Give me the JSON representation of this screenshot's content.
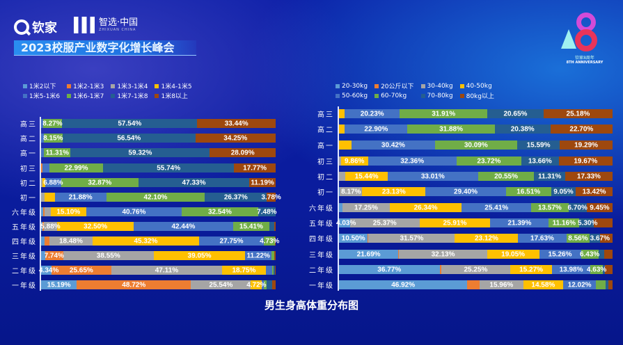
{
  "header": {
    "logo1_text": "钦家",
    "logo2_text": "智选·中国",
    "logo2_sub": "ZHIXUAN CHINA",
    "banner": "2023校服产业数字化增长峰会",
    "anniversary_cn": "钦家8周年",
    "anniversary_en": "8TH ANNIVERSARY"
  },
  "colors": [
    "#5b9bd5",
    "#ed7d31",
    "#a5a5a5",
    "#ffc000",
    "#4472c4",
    "#70ad47",
    "#255e91",
    "#9e480e"
  ],
  "chart_data": [
    {
      "type": "bar",
      "orientation": "horizontal-stacked-100",
      "title": "男生身高体重分布图",
      "legend_position": "top-left",
      "categories": [
        "高三",
        "高二",
        "高一",
        "初三",
        "初二",
        "初一",
        "六年级",
        "五年级",
        "四年级",
        "三年级",
        "二年级",
        "一年级"
      ],
      "series_names": [
        "1米2以下",
        "1米2-1米3",
        "1米3-1米4",
        "1米4-1米5",
        "1米5-1米6",
        "1米6-1米7",
        "1米7-1米8",
        "1米8以上"
      ],
      "rows": [
        {
          "values": [
            0,
            0,
            0,
            0,
            0.75,
            8.27,
            57.54,
            33.44
          ],
          "labeled": [
            5,
            6,
            7
          ]
        },
        {
          "values": [
            0,
            0,
            0,
            0,
            1.06,
            8.15,
            56.54,
            34.25
          ],
          "labeled": [
            5,
            6,
            7
          ]
        },
        {
          "values": [
            0,
            0,
            0,
            0,
            1.28,
            11.31,
            59.32,
            28.09
          ],
          "labeled": [
            5,
            6,
            7
          ]
        },
        {
          "values": [
            0,
            0.5,
            0,
            0,
            3.0,
            22.99,
            55.74,
            17.77
          ],
          "labeled": [
            5,
            6,
            7
          ]
        },
        {
          "values": [
            0,
            0,
            0.5,
            1.23,
            6.88,
            32.87,
            47.33,
            11.19
          ],
          "labeled": [
            4,
            5,
            6,
            7
          ]
        },
        {
          "values": [
            0,
            0,
            1.5,
            4.37,
            21.88,
            42.1,
            26.37,
            3.78
          ],
          "labeled": [
            4,
            5,
            6,
            7
          ]
        },
        {
          "values": [
            1.0,
            0.6,
            2.52,
            15.1,
            40.76,
            32.54,
            7.48,
            0
          ],
          "labeled": [
            3,
            4,
            5,
            6
          ]
        },
        {
          "values": [
            0.5,
            0.57,
            5.88,
            32.5,
            42.44,
            15.41,
            2.2,
            0.5
          ],
          "labeled": [
            2,
            3,
            4,
            5
          ]
        },
        {
          "values": [
            1.5,
            2.0,
            18.48,
            45.32,
            27.75,
            4.73,
            0,
            0.22
          ],
          "labeled": [
            2,
            3,
            4,
            5
          ]
        },
        {
          "values": [
            1.7,
            7.74,
            38.55,
            39.05,
            11.22,
            1.2,
            0,
            0.54
          ],
          "labeled": [
            1,
            2,
            3,
            4
          ]
        },
        {
          "values": [
            4.34,
            25.65,
            47.11,
            18.75,
            2.8,
            0.5,
            0.5,
            0.35
          ],
          "labeled": [
            0,
            1,
            2,
            3
          ]
        },
        {
          "values": [
            15.19,
            48.72,
            25.54,
            4.72,
            0.8,
            1.3,
            2.3,
            1.43
          ],
          "labeled": [
            0,
            1,
            2,
            3
          ]
        }
      ]
    },
    {
      "type": "bar",
      "orientation": "horizontal-stacked-100",
      "legend_position": "top-left",
      "categories": [
        "高三",
        "高二",
        "高一",
        "初三",
        "初二",
        "初一",
        "六年级",
        "五年级",
        "四年级",
        "三年级",
        "二年级",
        "一年级"
      ],
      "series_names": [
        "20-30kg",
        "20公斤以下",
        "30-40kg",
        "40-50kg",
        "50-60kg",
        "60-70kg",
        "70-80kg",
        "80kg以上"
      ],
      "rows": [
        {
          "values": [
            0,
            0,
            0,
            2.03,
            20.23,
            31.91,
            20.65,
            25.18
          ],
          "labeled": [
            4,
            5,
            6,
            7
          ]
        },
        {
          "values": [
            0,
            0,
            0,
            2.14,
            22.9,
            31.88,
            20.38,
            22.7
          ],
          "labeled": [
            4,
            5,
            6,
            7
          ]
        },
        {
          "values": [
            0,
            0,
            0,
            4.61,
            30.42,
            30.09,
            15.59,
            19.29
          ],
          "labeled": [
            4,
            5,
            6,
            7
          ]
        },
        {
          "values": [
            0,
            0,
            0.73,
            9.86,
            32.36,
            23.72,
            13.66,
            19.67
          ],
          "labeled": [
            3,
            4,
            5,
            6,
            7
          ]
        },
        {
          "values": [
            0,
            0,
            2.36,
            15.44,
            33.01,
            20.55,
            11.31,
            17.33
          ],
          "labeled": [
            3,
            4,
            5,
            6,
            7
          ]
        },
        {
          "values": [
            0.32,
            0,
            8.17,
            23.13,
            29.4,
            16.51,
            9.05,
            13.42
          ],
          "labeled": [
            2,
            3,
            4,
            5,
            6,
            7
          ]
        },
        {
          "values": [
            1.28,
            0,
            17.25,
            26.34,
            25.41,
            13.57,
            6.7,
            9.45
          ],
          "labeled": [
            2,
            3,
            4,
            5,
            6,
            7
          ]
        },
        {
          "values": [
            4.03,
            0,
            25.37,
            25.91,
            21.39,
            11.16,
            5.3,
            6.84
          ],
          "labeled": [
            0,
            2,
            3,
            4,
            5,
            6
          ]
        },
        {
          "values": [
            10.5,
            0.3,
            31.57,
            23.12,
            17.63,
            8.56,
            3.67,
            4.65
          ],
          "labeled": [
            0,
            2,
            3,
            4,
            5,
            6
          ]
        },
        {
          "values": [
            21.69,
            0.3,
            32.13,
            19.05,
            15.26,
            6.43,
            2.1,
            3.04
          ],
          "labeled": [
            0,
            2,
            3,
            4,
            5
          ]
        },
        {
          "values": [
            36.77,
            0.6,
            25.25,
            15.27,
            13.98,
            4.63,
            0.8,
            2.7
          ],
          "labeled": [
            0,
            2,
            3,
            4,
            5
          ]
        },
        {
          "values": [
            46.92,
            4.5,
            15.96,
            14.58,
            12.02,
            3.55,
            1.1,
            1.4
          ],
          "labeled": [
            0,
            2,
            3,
            4
          ]
        }
      ]
    }
  ]
}
